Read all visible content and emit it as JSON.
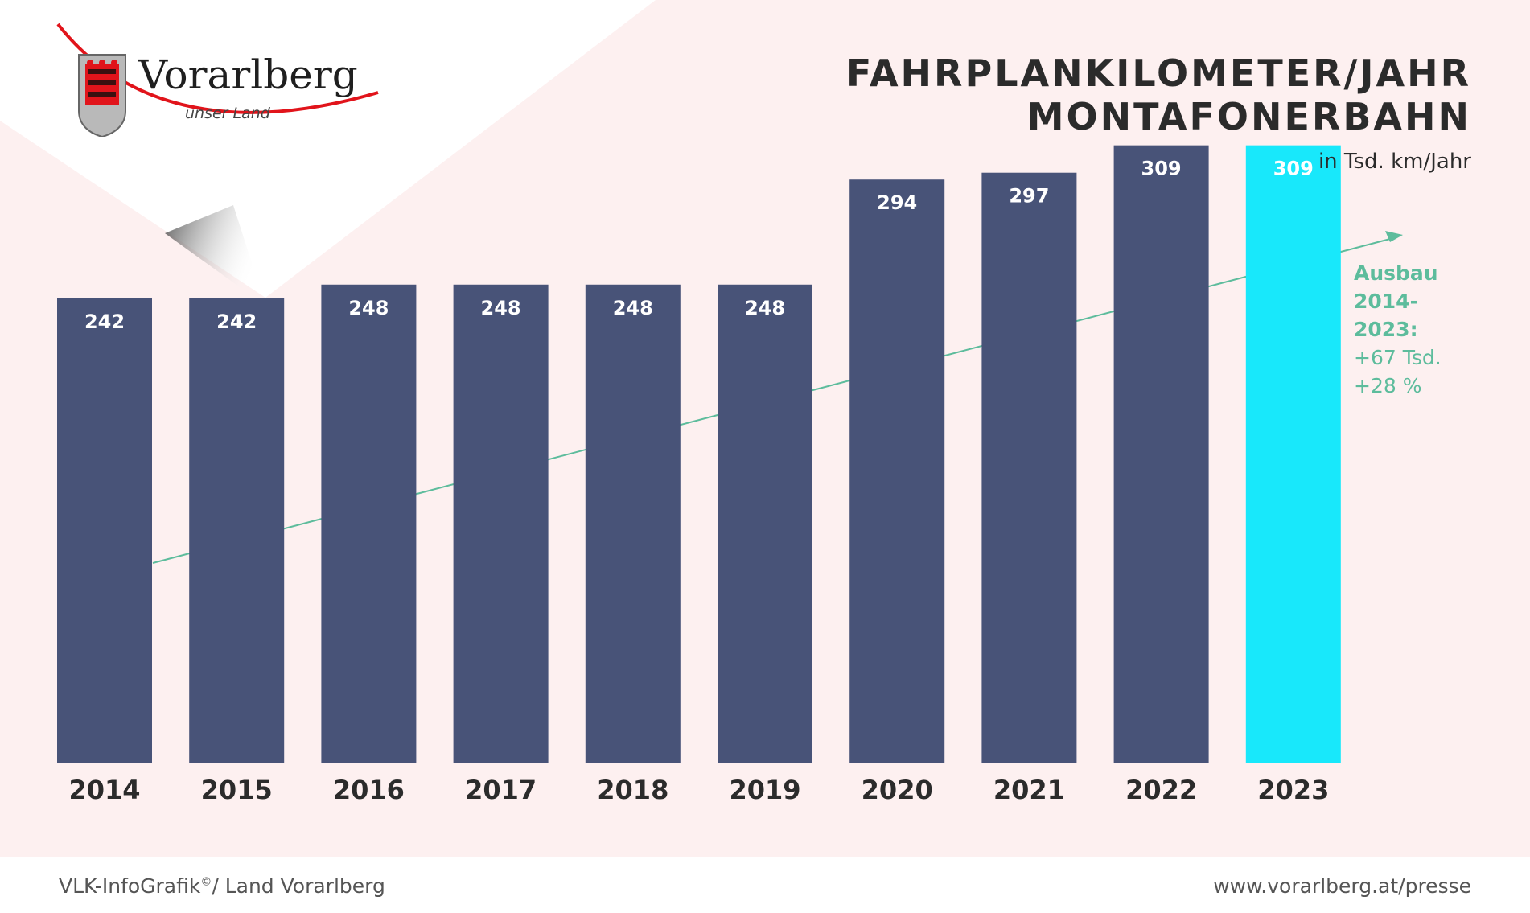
{
  "title_lines": [
    "FAHRPLANKILOMETER/JAHR",
    "MONTAFONERBAHN"
  ],
  "subtitle": "in Tsd. km/Jahr",
  "logo": {
    "word": "Vorarlberg",
    "sub": "unser Land"
  },
  "note": {
    "line1": "Ausbau",
    "line2": "2014-2023:",
    "line3": "+67 Tsd.",
    "line4": "+28 %"
  },
  "footer": {
    "left": "VLK-InfoGrafik",
    "left_sup": "©",
    "left_rest": "/ Land Vorarlberg",
    "right": "www.vorarlberg.at/presse"
  },
  "colors": {
    "bar": "#485378",
    "bar_highlight": "#18e8fb",
    "trend": "#5dbc9c",
    "background_tint": "#fdf0f0"
  },
  "chart_data": {
    "type": "bar",
    "title": "FAHRPLANKILOMETER/JAHR MONTAFONERBAHN",
    "ylabel": "in Tsd. km/Jahr",
    "categories": [
      "2014",
      "2015",
      "2016",
      "2017",
      "2018",
      "2019",
      "2020",
      "2021",
      "2022",
      "2023"
    ],
    "values": [
      242,
      242,
      248,
      248,
      248,
      248,
      294,
      297,
      309,
      309
    ],
    "highlight_category": "2023",
    "trend_arrow": true,
    "grid": false,
    "legend": "none"
  }
}
